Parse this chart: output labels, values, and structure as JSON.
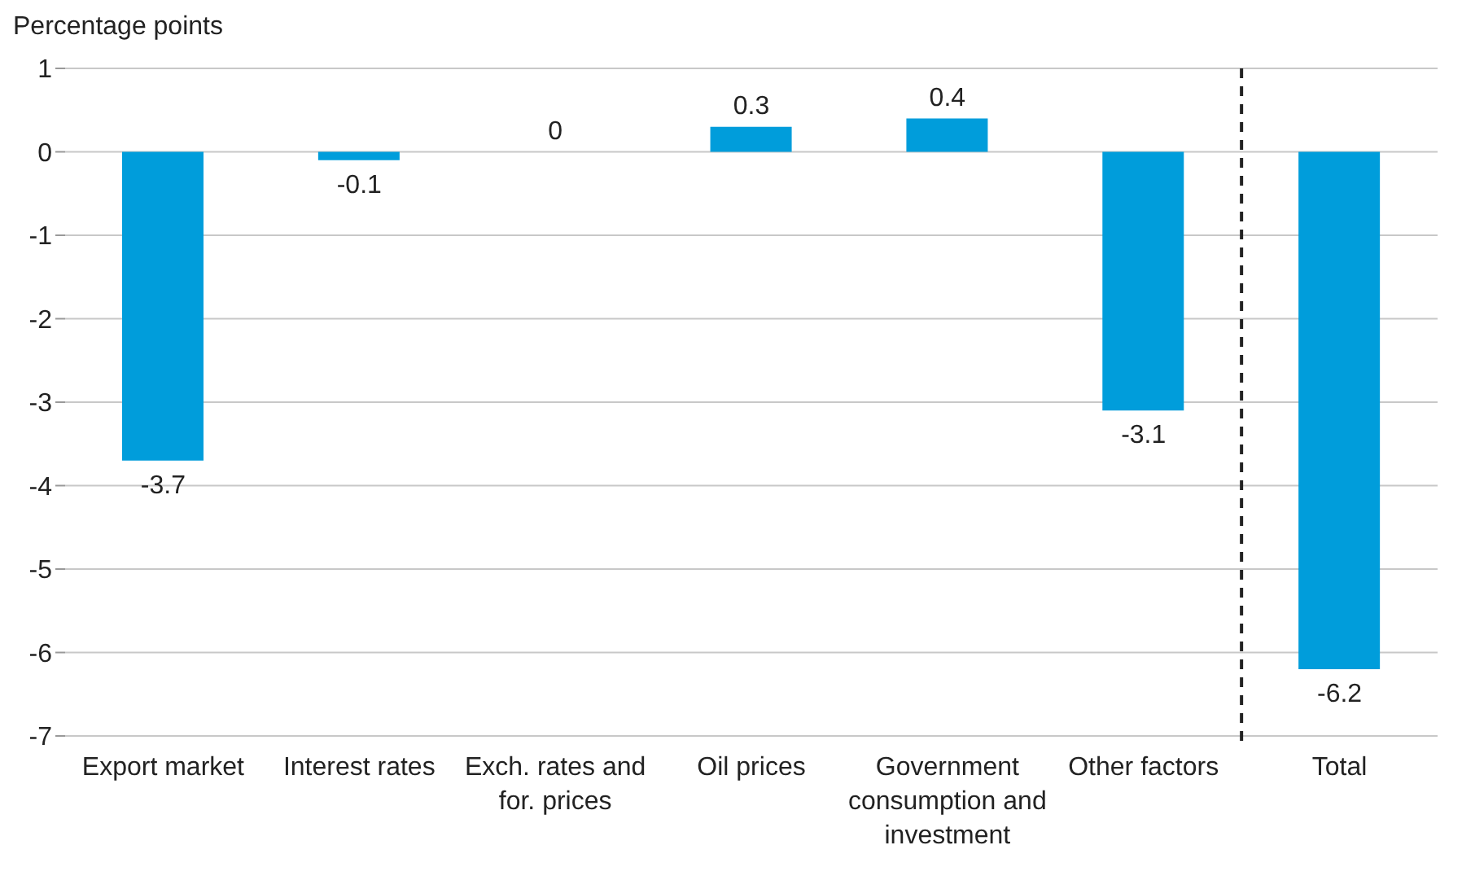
{
  "chart_data": {
    "type": "bar",
    "ylabel": "Percentage points",
    "categories": [
      "Export market",
      "Interest rates",
      "Exch. rates and for. prices",
      "Oil prices",
      "Government consumption and investment",
      "Other factors",
      "Total"
    ],
    "values": [
      -3.7,
      -0.1,
      0,
      0.3,
      0.4,
      -3.1,
      -6.2
    ],
    "color": "#009ddb",
    "ylim": [
      -7,
      1
    ],
    "yticks": [
      -7,
      -6,
      -5,
      -4,
      -3,
      -2,
      -1,
      0,
      1
    ],
    "grid": "y",
    "data_labels": true
  }
}
